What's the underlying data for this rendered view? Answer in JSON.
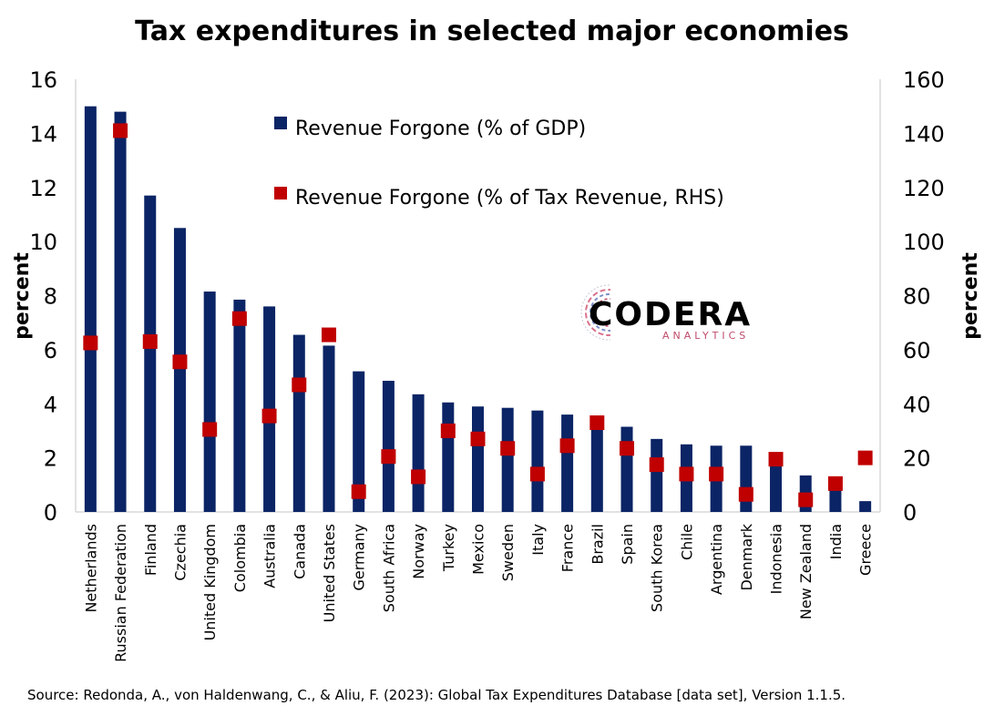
{
  "chart_data": {
    "type": "bar",
    "title": "Tax expenditures in selected major economies",
    "ylabel_left": "percent",
    "ylabel_right": "percent",
    "ylim_left": [
      0,
      16
    ],
    "ylim_right": [
      0,
      160
    ],
    "yticks_left": [
      "0",
      "2",
      "4",
      "6",
      "8",
      "10",
      "12",
      "14",
      "16"
    ],
    "yticks_right": [
      "0",
      "20",
      "40",
      "60",
      "80",
      "100",
      "120",
      "140",
      "160"
    ],
    "grid": false,
    "legend_position": "top-center",
    "categories": [
      "Netherlands",
      "Russian Federation",
      "Finland",
      "Czechia",
      "United Kingdom",
      "Colombia",
      "Australia",
      "Canada",
      "United States",
      "Germany",
      "South Africa",
      "Norway",
      "Turkey",
      "Mexico",
      "Sweden",
      "Italy",
      "France",
      "Brazil",
      "Spain",
      "South Korea",
      "Chile",
      "Argentina",
      "Denmark",
      "Indonesia",
      "New Zealand",
      "India",
      "Greece"
    ],
    "series": [
      {
        "name": "Revenue Forgone (% of GDP)",
        "type": "bar",
        "axis": "left",
        "color": "#0b2465",
        "values": [
          15.0,
          14.8,
          11.7,
          10.5,
          8.15,
          7.85,
          7.6,
          6.55,
          6.15,
          5.2,
          4.85,
          4.35,
          4.05,
          3.9,
          3.85,
          3.75,
          3.6,
          3.35,
          3.15,
          2.7,
          2.5,
          2.45,
          2.45,
          1.95,
          1.35,
          1.05,
          0.4
        ]
      },
      {
        "name": "Revenue Forgone (% of Tax Revenue, RHS)",
        "type": "scatter",
        "axis": "right",
        "color": "#c00000",
        "values": [
          62.5,
          141,
          63,
          55.5,
          30.5,
          71.5,
          35.5,
          47,
          65.5,
          7.5,
          20.5,
          13,
          30,
          27,
          23.5,
          14,
          24.5,
          33,
          23.5,
          17.5,
          14,
          14,
          6.5,
          19.5,
          4.5,
          10.5,
          20
        ]
      }
    ]
  },
  "logo": {
    "name": "CODERA",
    "sub": "ANALYTICS"
  },
  "source": "Source: Redonda, A., von Haldenwang, C., & Aliu, F. (2023): Global Tax Expenditures Database [data set], Version 1.1.5."
}
